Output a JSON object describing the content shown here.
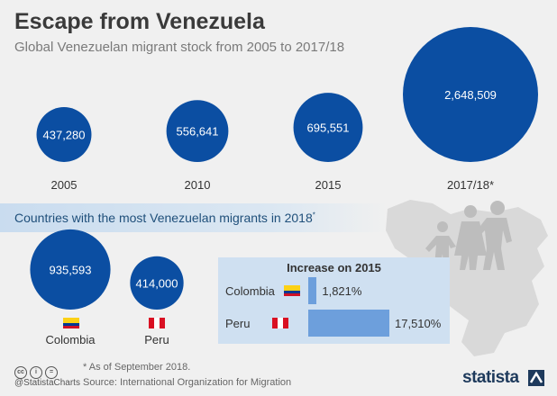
{
  "header": {
    "title": "Escape from Venezuela",
    "subtitle": "Global Venezuelan migrant stock from 2005 to 2017/18"
  },
  "chart_data": [
    {
      "type": "bubble",
      "title": "Escape from Venezuela",
      "subtitle": "Global Venezuelan migrant stock from 2005 to 2017/18",
      "categories": [
        "2005",
        "2010",
        "2015",
        "2017/18*"
      ],
      "values": [
        437280,
        556641,
        695551,
        2648509
      ],
      "value_labels": [
        "437,280",
        "556,641",
        "695,551",
        "2,648,509"
      ]
    },
    {
      "type": "bubble",
      "title": "Countries with the most Venezuelan migrants in 2018*",
      "categories": [
        "Colombia",
        "Peru"
      ],
      "values": [
        935593,
        414000
      ],
      "value_labels": [
        "935,593",
        "414,000"
      ]
    },
    {
      "type": "bar",
      "title": "Increase on 2015",
      "categories": [
        "Colombia",
        "Peru"
      ],
      "values": [
        1821,
        17510
      ],
      "value_labels": [
        "1,821%",
        "17,510%"
      ],
      "unit": "%"
    }
  ],
  "band": {
    "title": "Countries with the most Venezuelan migrants in 2018",
    "marker": "*"
  },
  "footer": {
    "note": "* As of September 2018.",
    "source": "Source: International Organization for Migration",
    "handle": "@StatistaCharts",
    "brand": "statista"
  },
  "colors": {
    "bubble": "#0b4ea2",
    "bar": "#6d9fdc",
    "box": "#cfe0f1",
    "map": "#d9d9d9",
    "silhouette": "#bdbdbd"
  },
  "icons": [
    "creative-commons-icon",
    "attribution-icon",
    "no-derivatives-icon",
    "colombia-flag-icon",
    "peru-flag-icon",
    "family-silhouette-icon",
    "venezuela-map-icon",
    "statista-logo-icon"
  ]
}
